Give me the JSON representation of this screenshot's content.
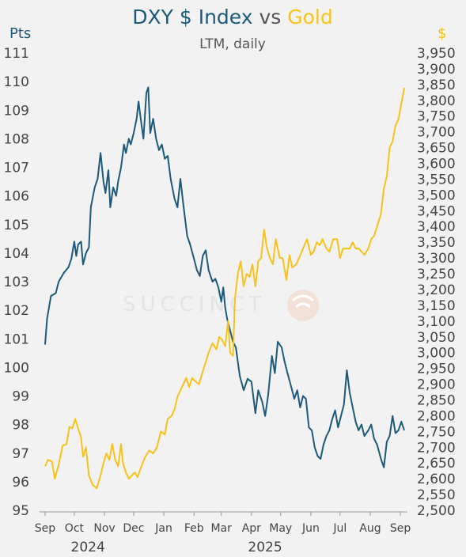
{
  "title": {
    "part1": "DXY $ Index",
    "part2": " vs ",
    "part3": "Gold"
  },
  "subtitle": "LTM, daily",
  "watermark": "SUCCINCT",
  "colors": {
    "dxy": "#1d5a7a",
    "gold": "#f8c21c",
    "background": "#f2f2f2",
    "text": "#444444"
  },
  "chart_data": {
    "type": "line",
    "title": "DXY $ Index vs Gold",
    "subtitle": "LTM, daily",
    "left_axis": {
      "unit_label": "Pts",
      "range": [
        95,
        111
      ],
      "ticks": [
        "95",
        "96",
        "97",
        "98",
        "99",
        "100",
        "101",
        "102",
        "103",
        "104",
        "105",
        "106",
        "107",
        "108",
        "109",
        "110",
        "111"
      ]
    },
    "right_axis": {
      "unit_label": "$",
      "range": [
        2500,
        3950
      ],
      "ticks": [
        "2,500",
        "2,550",
        "2,600",
        "2,650",
        "2,700",
        "2,750",
        "2,800",
        "2,850",
        "2,900",
        "2,950",
        "3,000",
        "3,050",
        "3,100",
        "3,150",
        "3,200",
        "3,250",
        "3,300",
        "3,350",
        "3,400",
        "3,450",
        "3,500",
        "3,550",
        "3,600",
        "3,650",
        "3,700",
        "3,750",
        "3,800",
        "3,850",
        "3,900",
        "3,950"
      ]
    },
    "x_axis": {
      "range": [
        "2024-09-01",
        "2025-09-05"
      ],
      "ticks": [
        {
          "label": "Sep",
          "date": "2024-09-01"
        },
        {
          "label": "Oct",
          "date": "2024-10-01"
        },
        {
          "label": "Nov",
          "date": "2024-11-01"
        },
        {
          "label": "Dec",
          "date": "2024-12-01"
        },
        {
          "label": "Jan",
          "date": "2025-01-01"
        },
        {
          "label": "Feb",
          "date": "2025-02-01"
        },
        {
          "label": "Mar",
          "date": "2025-03-01"
        },
        {
          "label": "Apr",
          "date": "2025-04-01"
        },
        {
          "label": "May",
          "date": "2025-05-01"
        },
        {
          "label": "Jun",
          "date": "2025-06-01"
        },
        {
          "label": "Jul",
          "date": "2025-07-01"
        },
        {
          "label": "Aug",
          "date": "2025-08-01"
        },
        {
          "label": "Sep",
          "date": "2025-09-01"
        }
      ],
      "years": [
        {
          "label": "2024",
          "date": "2024-10-15"
        },
        {
          "label": "2025",
          "date": "2025-04-15"
        }
      ]
    },
    "grid": false,
    "legend": "title-colored",
    "series": [
      {
        "name": "DXY $ Index",
        "axis": "left",
        "color": "#1d5a7a",
        "points": [
          [
            "2024-09-01",
            100.8
          ],
          [
            "2024-09-03",
            101.7
          ],
          [
            "2024-09-07",
            102.5
          ],
          [
            "2024-09-12",
            102.6
          ],
          [
            "2024-09-15",
            103.0
          ],
          [
            "2024-09-20",
            103.3
          ],
          [
            "2024-09-25",
            103.5
          ],
          [
            "2024-09-28",
            103.8
          ],
          [
            "2024-10-01",
            104.4
          ],
          [
            "2024-10-03",
            103.9
          ],
          [
            "2024-10-05",
            104.3
          ],
          [
            "2024-10-08",
            104.4
          ],
          [
            "2024-10-10",
            103.6
          ],
          [
            "2024-10-13",
            104.0
          ],
          [
            "2024-10-16",
            104.2
          ],
          [
            "2024-10-18",
            105.6
          ],
          [
            "2024-10-22",
            106.3
          ],
          [
            "2024-10-25",
            106.6
          ],
          [
            "2024-10-28",
            107.5
          ],
          [
            "2024-10-31",
            106.5
          ],
          [
            "2024-11-02",
            106.1
          ],
          [
            "2024-11-05",
            106.9
          ],
          [
            "2024-11-07",
            105.6
          ],
          [
            "2024-11-10",
            106.3
          ],
          [
            "2024-11-13",
            106.0
          ],
          [
            "2024-11-15",
            106.5
          ],
          [
            "2024-11-18",
            107.0
          ],
          [
            "2024-11-21",
            107.8
          ],
          [
            "2024-11-23",
            107.5
          ],
          [
            "2024-11-26",
            108.0
          ],
          [
            "2024-11-28",
            107.8
          ],
          [
            "2024-12-01",
            108.2
          ],
          [
            "2024-12-04",
            108.7
          ],
          [
            "2024-12-06",
            109.3
          ],
          [
            "2024-12-09",
            108.5
          ],
          [
            "2024-12-11",
            108.0
          ],
          [
            "2024-12-14",
            109.6
          ],
          [
            "2024-12-16",
            109.8
          ],
          [
            "2024-12-18",
            108.2
          ],
          [
            "2024-12-21",
            108.7
          ],
          [
            "2024-12-24",
            108.0
          ],
          [
            "2024-12-27",
            107.6
          ],
          [
            "2024-12-30",
            107.8
          ],
          [
            "2025-01-02",
            107.3
          ],
          [
            "2025-01-05",
            107.4
          ],
          [
            "2025-01-08",
            106.6
          ],
          [
            "2025-01-12",
            105.9
          ],
          [
            "2025-01-15",
            105.6
          ],
          [
            "2025-01-18",
            106.6
          ],
          [
            "2025-01-21",
            105.7
          ],
          [
            "2025-01-25",
            104.6
          ],
          [
            "2025-01-28",
            104.3
          ],
          [
            "2025-02-01",
            103.8
          ],
          [
            "2025-02-04",
            103.4
          ],
          [
            "2025-02-07",
            103.2
          ],
          [
            "2025-02-10",
            103.9
          ],
          [
            "2025-02-13",
            104.1
          ],
          [
            "2025-02-16",
            103.4
          ],
          [
            "2025-02-20",
            103.0
          ],
          [
            "2025-02-23",
            103.1
          ],
          [
            "2025-02-26",
            102.8
          ],
          [
            "2025-03-01",
            102.3
          ],
          [
            "2025-03-03",
            102.8
          ],
          [
            "2025-03-05",
            102.1
          ],
          [
            "2025-03-07",
            101.7
          ],
          [
            "2025-03-10",
            101.3
          ],
          [
            "2025-03-13",
            100.9
          ],
          [
            "2025-03-16",
            100.7
          ],
          [
            "2025-03-20",
            99.7
          ],
          [
            "2025-03-24",
            99.2
          ],
          [
            "2025-03-28",
            99.6
          ],
          [
            "2025-04-01",
            99.5
          ],
          [
            "2025-04-05",
            98.4
          ],
          [
            "2025-04-08",
            99.2
          ],
          [
            "2025-04-12",
            98.8
          ],
          [
            "2025-04-15",
            98.3
          ],
          [
            "2025-04-18",
            99.0
          ],
          [
            "2025-04-22",
            100.4
          ],
          [
            "2025-04-25",
            99.8
          ],
          [
            "2025-04-28",
            100.9
          ],
          [
            "2025-05-02",
            100.7
          ],
          [
            "2025-05-05",
            100.2
          ],
          [
            "2025-05-08",
            99.8
          ],
          [
            "2025-05-12",
            99.3
          ],
          [
            "2025-05-15",
            98.9
          ],
          [
            "2025-05-18",
            99.2
          ],
          [
            "2025-05-21",
            98.6
          ],
          [
            "2025-05-24",
            99.0
          ],
          [
            "2025-05-27",
            98.9
          ],
          [
            "2025-05-30",
            97.9
          ],
          [
            "2025-06-02",
            97.8
          ],
          [
            "2025-06-05",
            97.2
          ],
          [
            "2025-06-08",
            96.9
          ],
          [
            "2025-06-11",
            96.8
          ],
          [
            "2025-06-14",
            97.3
          ],
          [
            "2025-06-17",
            97.6
          ],
          [
            "2025-06-20",
            97.8
          ],
          [
            "2025-06-23",
            98.2
          ],
          [
            "2025-06-26",
            98.5
          ],
          [
            "2025-06-29",
            97.9
          ],
          [
            "2025-07-02",
            98.3
          ],
          [
            "2025-07-05",
            98.7
          ],
          [
            "2025-07-08",
            99.9
          ],
          [
            "2025-07-11",
            99.1
          ],
          [
            "2025-07-14",
            98.6
          ],
          [
            "2025-07-17",
            98.1
          ],
          [
            "2025-07-20",
            97.8
          ],
          [
            "2025-07-23",
            98.0
          ],
          [
            "2025-07-26",
            97.6
          ],
          [
            "2025-07-30",
            97.8
          ],
          [
            "2025-08-02",
            98.0
          ],
          [
            "2025-08-05",
            97.5
          ],
          [
            "2025-08-08",
            97.3
          ],
          [
            "2025-08-12",
            96.8
          ],
          [
            "2025-08-15",
            96.5
          ],
          [
            "2025-08-18",
            97.4
          ],
          [
            "2025-08-21",
            97.6
          ],
          [
            "2025-08-24",
            98.3
          ],
          [
            "2025-08-27",
            97.7
          ],
          [
            "2025-08-30",
            97.8
          ],
          [
            "2025-09-02",
            98.1
          ],
          [
            "2025-09-05",
            97.8
          ]
        ]
      },
      {
        "name": "Gold",
        "axis": "right",
        "color": "#f8c21c",
        "points": [
          [
            "2024-09-01",
            2640
          ],
          [
            "2024-09-04",
            2660
          ],
          [
            "2024-09-08",
            2655
          ],
          [
            "2024-09-11",
            2600
          ],
          [
            "2024-09-15",
            2645
          ],
          [
            "2024-09-19",
            2705
          ],
          [
            "2024-09-23",
            2710
          ],
          [
            "2024-09-26",
            2765
          ],
          [
            "2024-09-29",
            2760
          ],
          [
            "2024-10-02",
            2790
          ],
          [
            "2024-10-05",
            2760
          ],
          [
            "2024-10-08",
            2730
          ],
          [
            "2024-10-10",
            2670
          ],
          [
            "2024-10-13",
            2700
          ],
          [
            "2024-10-16",
            2610
          ],
          [
            "2024-10-20",
            2580
          ],
          [
            "2024-10-24",
            2570
          ],
          [
            "2024-10-28",
            2610
          ],
          [
            "2024-10-31",
            2650
          ],
          [
            "2024-11-03",
            2680
          ],
          [
            "2024-11-06",
            2660
          ],
          [
            "2024-11-09",
            2710
          ],
          [
            "2024-11-12",
            2660
          ],
          [
            "2024-11-15",
            2640
          ],
          [
            "2024-11-18",
            2710
          ],
          [
            "2024-11-20",
            2650
          ],
          [
            "2024-11-23",
            2620
          ],
          [
            "2024-11-26",
            2600
          ],
          [
            "2024-11-29",
            2610
          ],
          [
            "2024-12-02",
            2620
          ],
          [
            "2024-12-05",
            2605
          ],
          [
            "2024-12-09",
            2640
          ],
          [
            "2024-12-13",
            2670
          ],
          [
            "2024-12-17",
            2690
          ],
          [
            "2024-12-21",
            2680
          ],
          [
            "2024-12-25",
            2700
          ],
          [
            "2024-12-29",
            2750
          ],
          [
            "2025-01-02",
            2740
          ],
          [
            "2025-01-05",
            2790
          ],
          [
            "2025-01-09",
            2800
          ],
          [
            "2025-01-12",
            2820
          ],
          [
            "2025-01-15",
            2860
          ],
          [
            "2025-01-18",
            2880
          ],
          [
            "2025-01-21",
            2900
          ],
          [
            "2025-01-24",
            2920
          ],
          [
            "2025-01-27",
            2890
          ],
          [
            "2025-01-30",
            2920
          ],
          [
            "2025-02-02",
            2910
          ],
          [
            "2025-02-06",
            2900
          ],
          [
            "2025-02-09",
            2930
          ],
          [
            "2025-02-12",
            2960
          ],
          [
            "2025-02-16",
            3000
          ],
          [
            "2025-02-20",
            3030
          ],
          [
            "2025-02-24",
            3010
          ],
          [
            "2025-02-27",
            3050
          ],
          [
            "2025-03-02",
            3040
          ],
          [
            "2025-03-05",
            3020
          ],
          [
            "2025-03-08",
            3100
          ],
          [
            "2025-03-10",
            3000
          ],
          [
            "2025-03-13",
            2990
          ],
          [
            "2025-03-15",
            3170
          ],
          [
            "2025-03-18",
            3250
          ],
          [
            "2025-03-21",
            3290
          ],
          [
            "2025-03-24",
            3210
          ],
          [
            "2025-03-27",
            3250
          ],
          [
            "2025-03-30",
            3240
          ],
          [
            "2025-04-02",
            3280
          ],
          [
            "2025-04-05",
            3210
          ],
          [
            "2025-04-08",
            3290
          ],
          [
            "2025-04-11",
            3300
          ],
          [
            "2025-04-14",
            3390
          ],
          [
            "2025-04-17",
            3330
          ],
          [
            "2025-04-20",
            3300
          ],
          [
            "2025-04-23",
            3280
          ],
          [
            "2025-04-26",
            3360
          ],
          [
            "2025-04-30",
            3300
          ],
          [
            "2025-05-03",
            3300
          ],
          [
            "2025-05-07",
            3230
          ],
          [
            "2025-05-10",
            3310
          ],
          [
            "2025-05-13",
            3270
          ],
          [
            "2025-05-17",
            3280
          ],
          [
            "2025-05-20",
            3300
          ],
          [
            "2025-05-24",
            3330
          ],
          [
            "2025-05-28",
            3360
          ],
          [
            "2025-06-01",
            3310
          ],
          [
            "2025-06-04",
            3320
          ],
          [
            "2025-06-07",
            3350
          ],
          [
            "2025-06-10",
            3340
          ],
          [
            "2025-06-13",
            3360
          ],
          [
            "2025-06-17",
            3330
          ],
          [
            "2025-06-20",
            3320
          ],
          [
            "2025-06-24",
            3360
          ],
          [
            "2025-06-28",
            3360
          ],
          [
            "2025-07-01",
            3300
          ],
          [
            "2025-07-04",
            3330
          ],
          [
            "2025-07-08",
            3330
          ],
          [
            "2025-07-11",
            3330
          ],
          [
            "2025-07-14",
            3350
          ],
          [
            "2025-07-17",
            3330
          ],
          [
            "2025-07-20",
            3330
          ],
          [
            "2025-07-23",
            3320
          ],
          [
            "2025-07-26",
            3310
          ],
          [
            "2025-07-30",
            3330
          ],
          [
            "2025-08-02",
            3360
          ],
          [
            "2025-08-05",
            3370
          ],
          [
            "2025-08-08",
            3400
          ],
          [
            "2025-08-12",
            3440
          ],
          [
            "2025-08-15",
            3520
          ],
          [
            "2025-08-18",
            3560
          ],
          [
            "2025-08-21",
            3650
          ],
          [
            "2025-08-24",
            3670
          ],
          [
            "2025-08-27",
            3720
          ],
          [
            "2025-08-30",
            3740
          ],
          [
            "2025-09-02",
            3790
          ],
          [
            "2025-09-05",
            3840
          ]
        ]
      }
    ]
  }
}
